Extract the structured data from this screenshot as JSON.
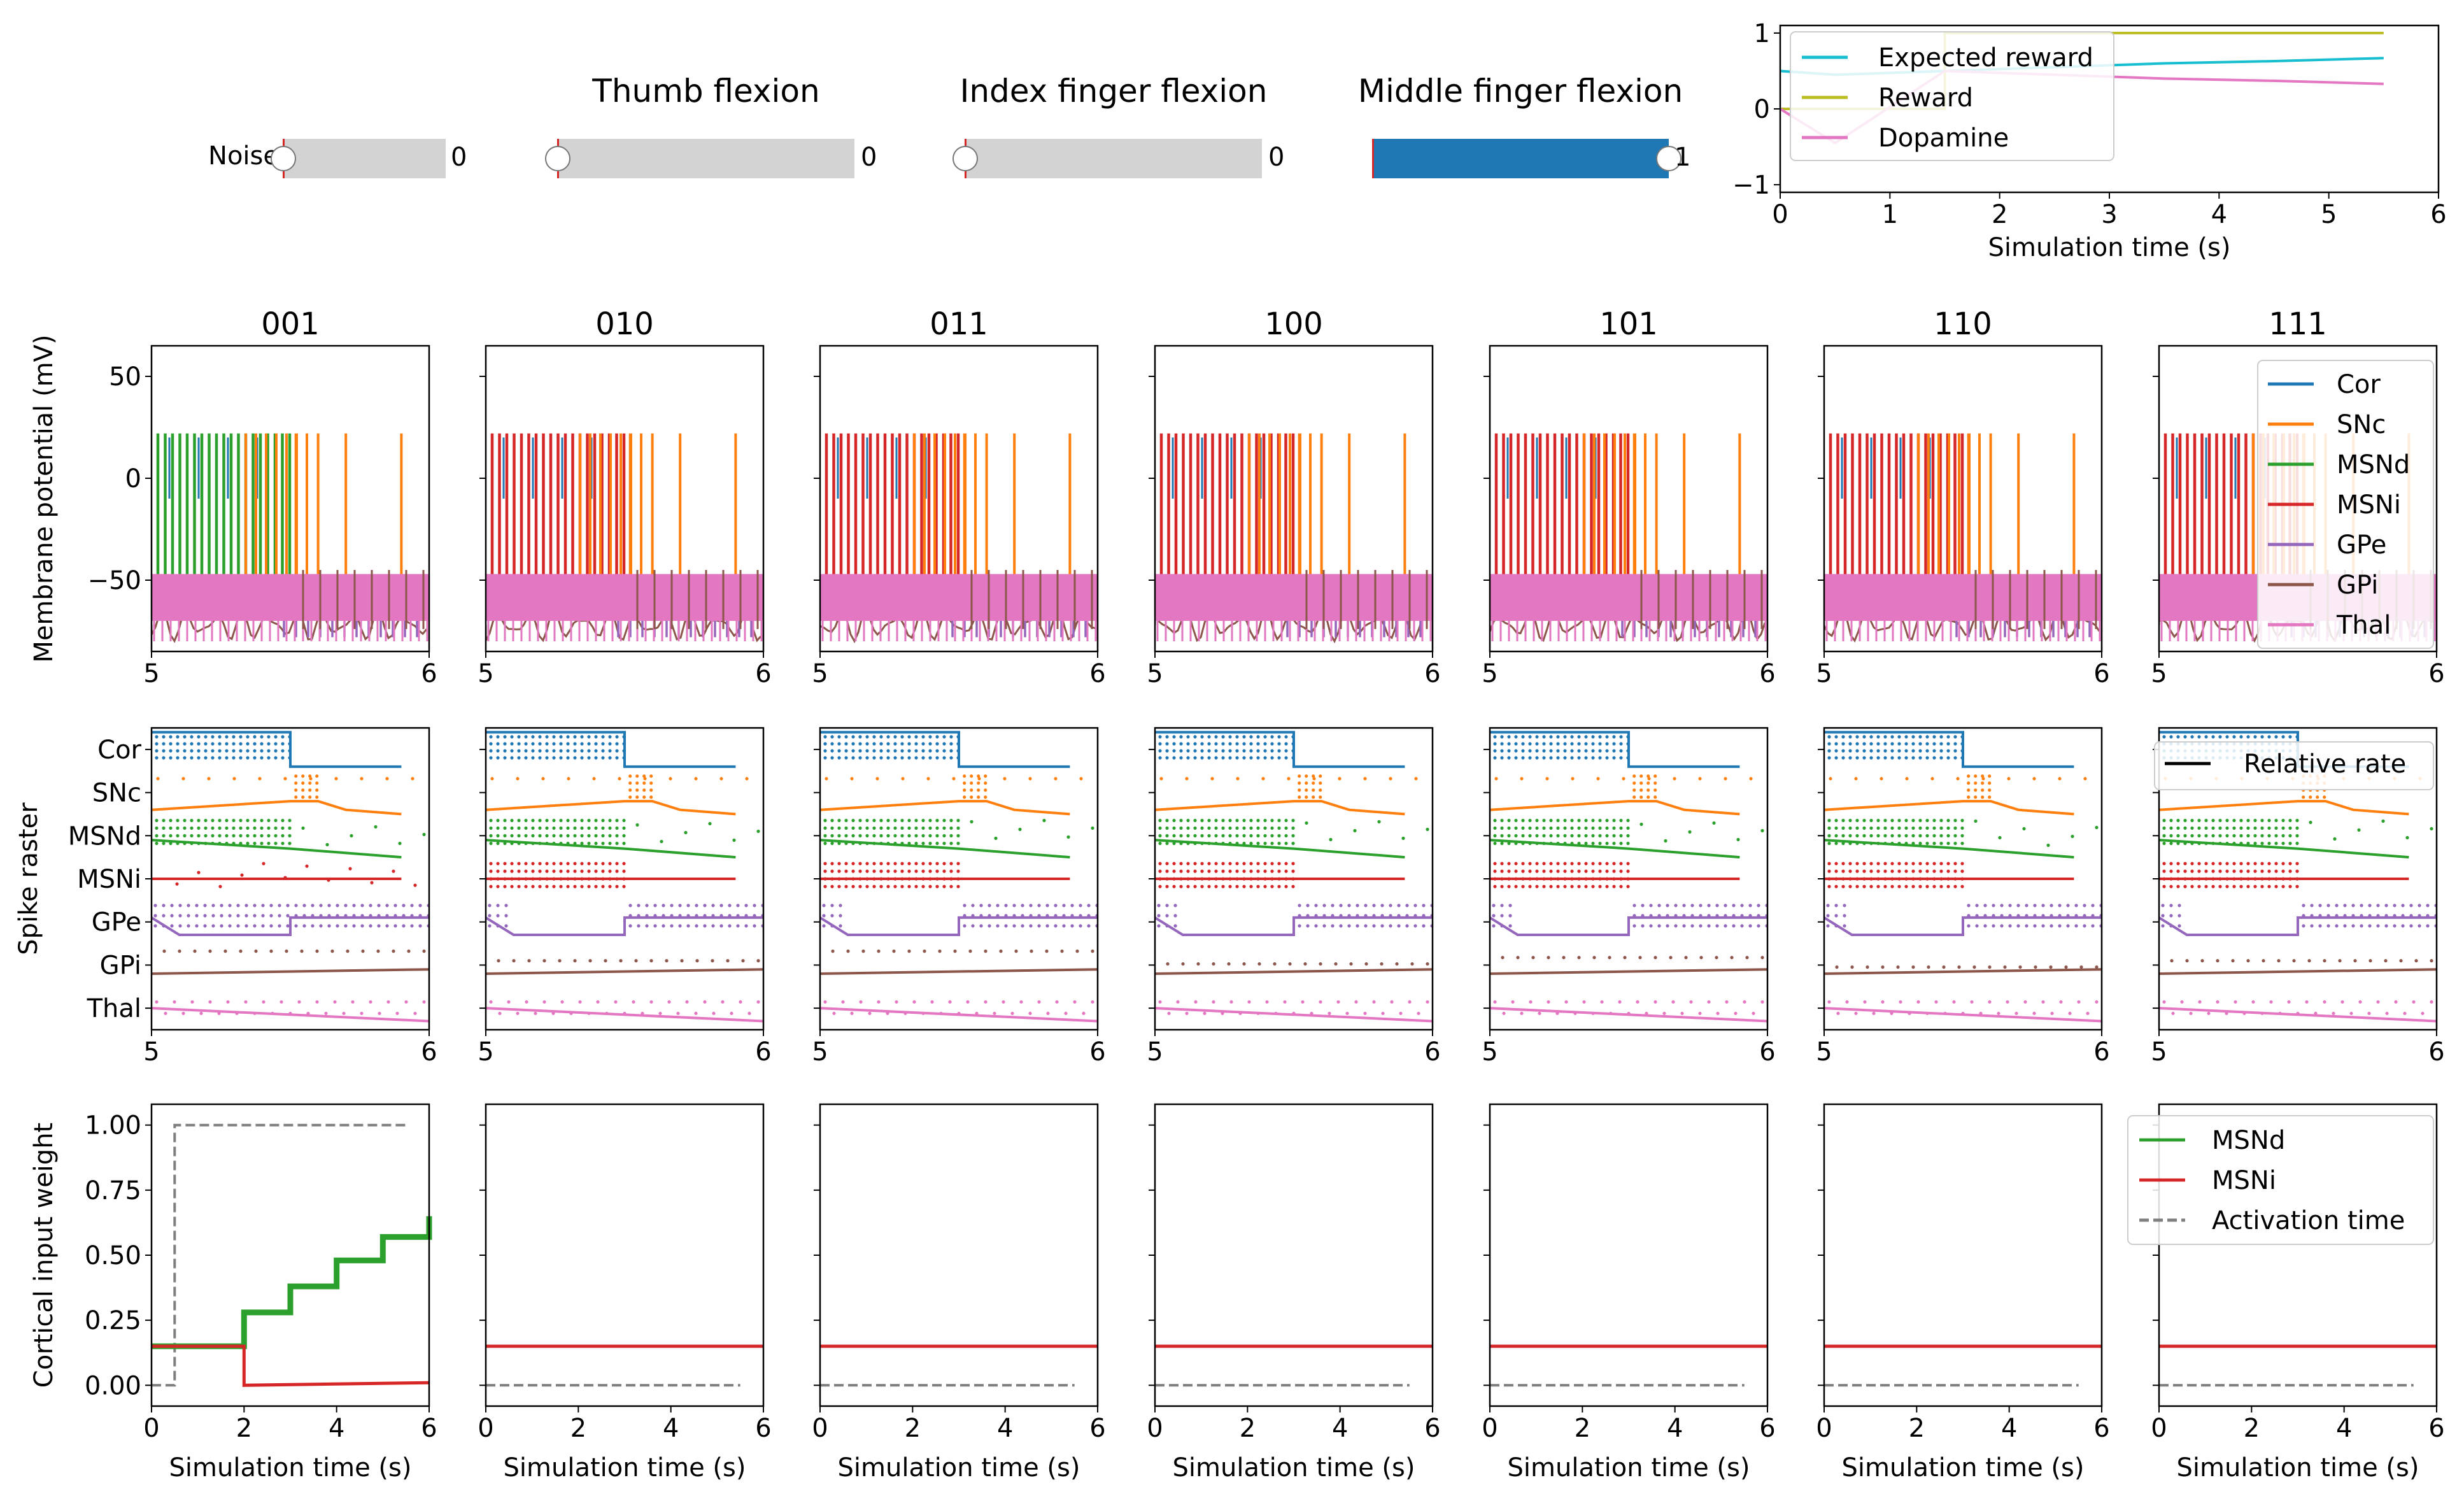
{
  "controls": {
    "noise": {
      "label": "Noise",
      "value": 0,
      "value_text": "0",
      "min": 0,
      "max": 1
    },
    "thumb": {
      "title": "Thumb flexion",
      "value": 0,
      "value_text": "0",
      "min": 0,
      "max": 1
    },
    "index": {
      "title": "Index finger flexion",
      "value": 0,
      "value_text": "0",
      "min": 0,
      "max": 1
    },
    "middle": {
      "title": "Middle finger flexion",
      "value": 1,
      "value_text": "1",
      "min": 0,
      "max": 1
    }
  },
  "chart_data": [
    {
      "id": "reward",
      "type": "line",
      "xlabel": "Simulation time (s)",
      "xlim": [
        0,
        6
      ],
      "ylim": [
        -1.1,
        1.1
      ],
      "xticks": [
        0,
        1,
        2,
        3,
        4,
        5,
        6
      ],
      "yticks": [
        -1,
        0,
        1
      ],
      "legend_position": "upper-left",
      "series": [
        {
          "name": "Expected reward",
          "color": "#17becf",
          "x": [
            0,
            0.5,
            1.5,
            2.5,
            3.5,
            4.5,
            5.5
          ],
          "y": [
            0.5,
            0.45,
            0.5,
            0.55,
            0.6,
            0.63,
            0.67
          ]
        },
        {
          "name": "Reward",
          "color": "#bcbd22",
          "x": [
            0,
            0.5,
            1.5,
            1.5,
            5.5
          ],
          "y": [
            0,
            0,
            0,
            1,
            1
          ]
        },
        {
          "name": "Dopamine",
          "color": "#e377c2",
          "x": [
            0,
            0.5,
            1.5,
            2.5,
            3.5,
            4.5,
            5.5
          ],
          "y": [
            0,
            -0.45,
            0.5,
            0.45,
            0.4,
            0.37,
            0.33
          ]
        }
      ]
    },
    {
      "id": "membrane",
      "type": "line",
      "ylabel": "Membrane potential (mV)",
      "panels": [
        "001",
        "010",
        "011",
        "100",
        "101",
        "110",
        "111"
      ],
      "xlim": [
        5,
        6
      ],
      "ylim": [
        -85,
        65
      ],
      "xticks": [
        5,
        6
      ],
      "yticks": [
        -50,
        0,
        50
      ],
      "legend_position": "right",
      "series": [
        {
          "name": "Cor",
          "color": "#1f77b4"
        },
        {
          "name": "SNc",
          "color": "#ff7f0e"
        },
        {
          "name": "MSNd",
          "color": "#2ca02c"
        },
        {
          "name": "MSNi",
          "color": "#d62728"
        },
        {
          "name": "GPe",
          "color": "#9467bd"
        },
        {
          "name": "GPi",
          "color": "#8c564b"
        },
        {
          "name": "Thal",
          "color": "#e377c2"
        }
      ],
      "spike_peak_mv": 22,
      "rest_mv": -65,
      "burst_end_s": [
        5.5,
        5.5,
        5.5,
        5.5,
        5.5,
        5.5,
        5.5
      ],
      "snc_spike_times_s": [
        5.52,
        5.6,
        5.7,
        5.9
      ]
    },
    {
      "id": "raster",
      "type": "scatter",
      "ylabel": "Spike raster",
      "populations": [
        "Cor",
        "SNc",
        "MSNd",
        "MSNi",
        "GPe",
        "GPi",
        "Thal"
      ],
      "xlim": [
        5,
        6
      ],
      "xticks": [
        5,
        6
      ],
      "legend_position": "upper-right",
      "legend_entries": [
        "Relative rate"
      ],
      "colors": [
        "#1f77b4",
        "#ff7f0e",
        "#2ca02c",
        "#d62728",
        "#9467bd",
        "#8c564b",
        "#e377c2"
      ],
      "relative_rate": {
        "Cor": [
          [
            5.0,
            0.9
          ],
          [
            5.5,
            0.9
          ],
          [
            5.5,
            0.1
          ],
          [
            5.9,
            0.1
          ]
        ],
        "SNc": [
          [
            5.0,
            0.1
          ],
          [
            5.5,
            0.3
          ],
          [
            5.6,
            0.3
          ],
          [
            5.7,
            0.1
          ],
          [
            5.9,
            0.0
          ]
        ],
        "MSNd": [
          [
            5.0,
            0.4
          ],
          [
            5.5,
            0.2
          ],
          [
            5.9,
            0.0
          ]
        ],
        "MSNi": [
          [
            5.0,
            0.5
          ],
          [
            5.5,
            0.5
          ],
          [
            5.9,
            0.5
          ]
        ],
        "GPe": [
          [
            5.0,
            0.6
          ],
          [
            5.1,
            0.2
          ],
          [
            5.5,
            0.2
          ],
          [
            5.5,
            0.6
          ],
          [
            6.0,
            0.6
          ]
        ],
        "GPi": [
          [
            5.0,
            0.3
          ],
          [
            6.0,
            0.4
          ]
        ],
        "Thal": [
          [
            5.0,
            0.5
          ],
          [
            6.0,
            0.2
          ]
        ]
      }
    },
    {
      "id": "weights",
      "type": "line",
      "ylabel": "Cortical input weight",
      "xlabel": "Simulation time (s)",
      "xlim": [
        0,
        6
      ],
      "ylim": [
        -0.08,
        1.08
      ],
      "xticks": [
        0,
        2,
        4,
        6
      ],
      "yticks": [
        0.0,
        0.25,
        0.5,
        0.75,
        1.0
      ],
      "ytick_labels": [
        "0.00",
        "0.25",
        "0.50",
        "0.75",
        "1.00"
      ],
      "legend_position": "upper-right",
      "legend_entries": [
        {
          "name": "MSNd",
          "color": "#2ca02c",
          "style": "solid"
        },
        {
          "name": "MSNi",
          "color": "#d62728",
          "style": "solid"
        },
        {
          "name": "Activation time",
          "color": "#7f7f7f",
          "style": "dashed"
        }
      ],
      "panel_series": [
        {
          "msnd": {
            "x": [
              0,
              1,
              1,
              2,
              2,
              3,
              3,
              4,
              4,
              5,
              5,
              6,
              6
            ],
            "y": [
              0.15,
              0.15,
              0.15,
              0.15,
              0.28,
              0.28,
              0.38,
              0.38,
              0.48,
              0.48,
              0.57,
              0.57,
              0.65
            ]
          },
          "msni": {
            "x": [
              0,
              2,
              2,
              6
            ],
            "y": [
              0.15,
              0.15,
              0.0,
              0.01
            ]
          },
          "activation": {
            "x": [
              0,
              0.5,
              0.5,
              5.5
            ],
            "y": [
              0,
              0,
              1,
              1
            ]
          }
        },
        {
          "msni": {
            "x": [
              0,
              6
            ],
            "y": [
              0.15,
              0.15
            ]
          },
          "activation": {
            "x": [
              0,
              5.5
            ],
            "y": [
              0,
              0
            ]
          }
        },
        {
          "msni": {
            "x": [
              0,
              6
            ],
            "y": [
              0.15,
              0.15
            ]
          },
          "activation": {
            "x": [
              0,
              5.5
            ],
            "y": [
              0,
              0
            ]
          }
        },
        {
          "msni": {
            "x": [
              0,
              6
            ],
            "y": [
              0.15,
              0.15
            ]
          },
          "activation": {
            "x": [
              0,
              5.5
            ],
            "y": [
              0,
              0
            ]
          }
        },
        {
          "msni": {
            "x": [
              0,
              6
            ],
            "y": [
              0.15,
              0.15
            ]
          },
          "activation": {
            "x": [
              0,
              5.5
            ],
            "y": [
              0,
              0
            ]
          }
        },
        {
          "msni": {
            "x": [
              0,
              6
            ],
            "y": [
              0.15,
              0.15
            ]
          },
          "activation": {
            "x": [
              0,
              5.5
            ],
            "y": [
              0,
              0
            ]
          }
        },
        {
          "msni": {
            "x": [
              0,
              6
            ],
            "y": [
              0.15,
              0.15
            ]
          },
          "activation": {
            "x": [
              0,
              5.5
            ],
            "y": [
              0,
              0
            ]
          }
        }
      ]
    }
  ]
}
